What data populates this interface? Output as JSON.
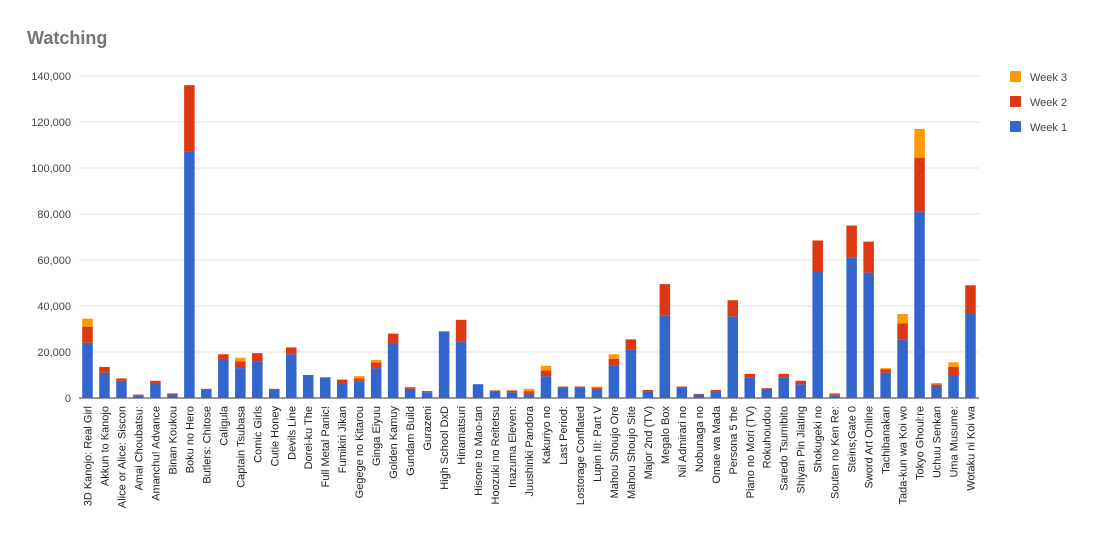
{
  "chart_data": {
    "type": "bar",
    "stacked": true,
    "title": "Watching",
    "xlabel": "",
    "ylabel": "",
    "ylim": [
      0,
      140000
    ],
    "yticks": [
      0,
      20000,
      40000,
      60000,
      80000,
      100000,
      120000,
      140000
    ],
    "ytick_labels": [
      "0",
      "20,000",
      "40,000",
      "60,000",
      "80,000",
      "100,000",
      "120,000",
      "140,000"
    ],
    "grid": true,
    "legend_position": "right",
    "categories": [
      "3D Kanojo: Real Girl",
      "Akkun to Kanojo",
      "Alice or Alice: Siscon",
      "Amai Choubatsu:",
      "Amanchu! Advance",
      "Binan Koukou",
      "Boku no Hero",
      "Butlers: Chitose",
      "Caligula",
      "Captain Tsubasa",
      "Comic Girls",
      "Cutie Honey",
      "Devils Line",
      "Dorei-ku The",
      "Full Metal Panic!",
      "Fumikiri Jikan",
      "Gegege no Kitarou",
      "Ginga Eiyuu",
      "Golden Kamuy",
      "Gundam Build",
      "Gurazeni",
      "High School DxD",
      "Hinamatsuri",
      "Hisone to Mao-tan",
      "Hoozuki no Reitetsu",
      "Inazuma Eleven:",
      "Juushinki Pandora",
      "Kakuriyo no",
      "Last Period:",
      "Lostorage Conflated",
      "Lupin III: Part V",
      "Mahou Shoujo Ore",
      "Mahou Shoujo Site",
      "Major 2nd (TV)",
      "Megalo Box",
      "Nil Admirari no",
      "Nobunaga no",
      "Omae wa Mada",
      "Persona 5 the",
      "Piano no Mori (TV)",
      "Rokuhoudou",
      "Saredo Tsumibito",
      "Shiyan Pin Jiating",
      "Shokugeki no",
      "Souten no Ken Re:",
      "Steins;Gate 0",
      "Sword Art Online",
      "Tachibanakan",
      "Tada-kun wa Koi wo",
      "Tokyo Ghoul:re",
      "Uchuu Senkan",
      "Uma Musume:",
      "Wotaku ni Koi wa"
    ],
    "series": [
      {
        "name": "Week 1",
        "color": "#3366cc",
        "values": [
          24000,
          11000,
          7500,
          1000,
          6500,
          1500,
          107000,
          3500,
          17000,
          13000,
          16000,
          3500,
          19000,
          10000,
          9000,
          6500,
          7000,
          13000,
          23500,
          4000,
          2500,
          29000,
          24500,
          6000,
          2800,
          2500,
          1500,
          9500,
          4500,
          4500,
          3500,
          14000,
          21000,
          3000,
          36000,
          4500,
          1500,
          2800,
          35500,
          9000,
          4000,
          9000,
          6000,
          55000,
          1200,
          61000,
          54500,
          11000,
          25500,
          81000,
          5000,
          10000,
          36500
        ]
      },
      {
        "name": "Week 2",
        "color": "#dc3912",
        "values": [
          7000,
          2500,
          1000,
          500,
          1000,
          500,
          29000,
          500,
          2000,
          3000,
          3500,
          500,
          3000,
          0,
          0,
          1500,
          1500,
          2500,
          4500,
          700,
          500,
          0,
          9500,
          0,
          500,
          800,
          1500,
          2500,
          500,
          500,
          1000,
          3000,
          4500,
          500,
          13500,
          500,
          300,
          700,
          7000,
          1500,
          300,
          1500,
          1500,
          13500,
          500,
          14000,
          13500,
          1500,
          7000,
          23500,
          1000,
          3500,
          12500
        ]
      },
      {
        "name": "Week 3",
        "color": "#ff9900",
        "values": [
          3500,
          0,
          0,
          0,
          0,
          0,
          0,
          0,
          0,
          1500,
          0,
          0,
          0,
          0,
          0,
          0,
          1000,
          1000,
          0,
          0,
          0,
          0,
          0,
          0,
          0,
          0,
          1000,
          2000,
          0,
          0,
          500,
          2000,
          0,
          0,
          0,
          0,
          0,
          0,
          0,
          0,
          0,
          0,
          0,
          0,
          500,
          0,
          0,
          500,
          4000,
          12500,
          500,
          2000,
          0
        ]
      }
    ]
  }
}
